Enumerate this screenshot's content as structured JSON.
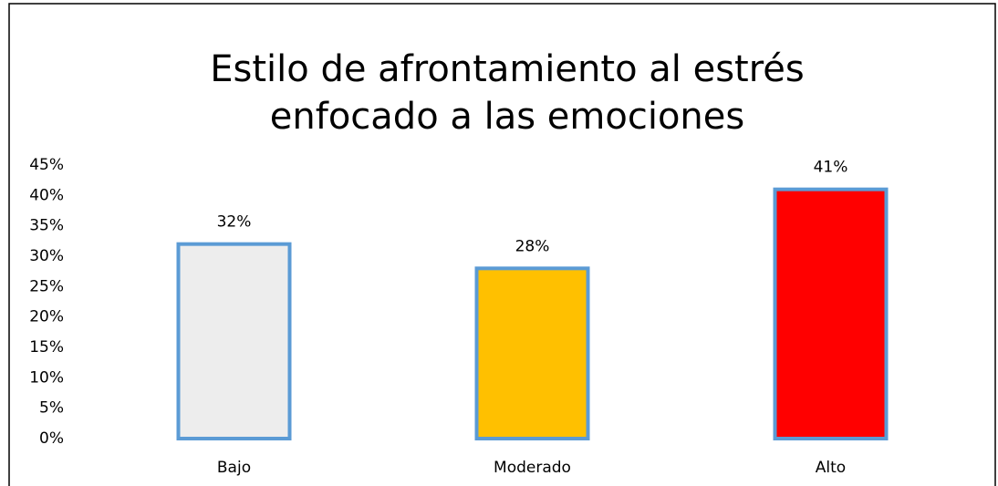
{
  "chart_data": {
    "type": "bar",
    "title": [
      "Estilo de afrontamiento al estrés",
      "enfocado a las emociones"
    ],
    "categories": [
      "Bajo",
      "Moderado",
      "Alto"
    ],
    "values": [
      32,
      28,
      41
    ],
    "value_labels": [
      "32%",
      "28%",
      "41%"
    ],
    "colors": [
      "#ededed",
      "#ffc000",
      "#ff0000"
    ],
    "edge_color": "#5b9bd5",
    "ylim": [
      0,
      45
    ],
    "yticks": [
      {
        "value": 0,
        "label": "0%"
      },
      {
        "value": 5,
        "label": "5%"
      },
      {
        "value": 10,
        "label": "10%"
      },
      {
        "value": 15,
        "label": "15%"
      },
      {
        "value": 20,
        "label": "20%"
      },
      {
        "value": 25,
        "label": "25%"
      },
      {
        "value": 30,
        "label": "30%"
      },
      {
        "value": 35,
        "label": "35%"
      },
      {
        "value": 40,
        "label": "40%"
      },
      {
        "value": 45,
        "label": "45%"
      }
    ],
    "grid": false
  }
}
